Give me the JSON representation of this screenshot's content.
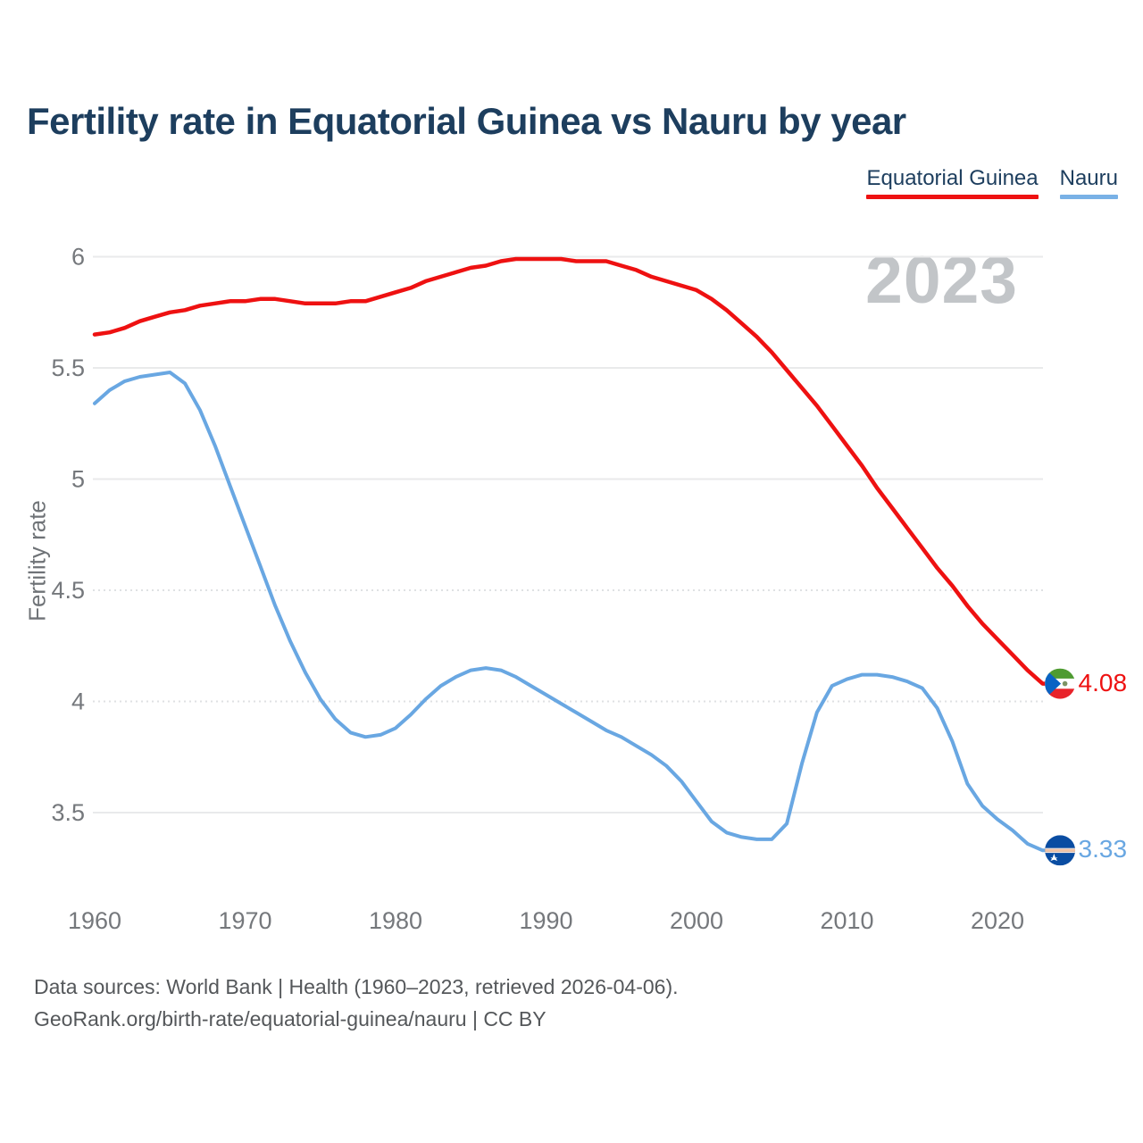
{
  "title": "Fertility rate in Equatorial Guinea vs Nauru by year",
  "legend": [
    {
      "label": "Equatorial Guinea",
      "color": "#ee1111"
    },
    {
      "label": "Nauru",
      "color": "#79b1e6"
    }
  ],
  "watermark": "2023",
  "footer": {
    "line1": "Data sources: World Bank | Health (1960–2023, retrieved 2026-04-06).",
    "line2": "GeoRank.org/birth-rate/equatorial-guinea/nauru | CC BY"
  },
  "chart_data": {
    "type": "line",
    "title": "Fertility rate in Equatorial Guinea vs Nauru by year",
    "xlabel": "",
    "ylabel": "Fertility rate",
    "xlim": [
      1960,
      2023
    ],
    "ylim": [
      3.5,
      6
    ],
    "grid": "horizontal",
    "legend_position": "top-right",
    "x_ticks": [
      1960,
      1970,
      1980,
      1990,
      2000,
      2010,
      2020
    ],
    "y_ticks": [
      6,
      5.5,
      5,
      4.5,
      4,
      3.5
    ],
    "y_tick_labels": [
      "6",
      "5.5",
      "5",
      "4.5",
      "4",
      "3.5"
    ],
    "dotted_gridlines": [
      4.5,
      4
    ],
    "x": [
      1960,
      1961,
      1962,
      1963,
      1964,
      1965,
      1966,
      1967,
      1968,
      1969,
      1970,
      1971,
      1972,
      1973,
      1974,
      1975,
      1976,
      1977,
      1978,
      1979,
      1980,
      1981,
      1982,
      1983,
      1984,
      1985,
      1986,
      1987,
      1988,
      1989,
      1990,
      1991,
      1992,
      1993,
      1994,
      1995,
      1996,
      1997,
      1998,
      1999,
      2000,
      2001,
      2002,
      2003,
      2004,
      2005,
      2006,
      2007,
      2008,
      2009,
      2010,
      2011,
      2012,
      2013,
      2014,
      2015,
      2016,
      2017,
      2018,
      2019,
      2020,
      2021,
      2022,
      2023
    ],
    "series": [
      {
        "name": "Equatorial Guinea",
        "color": "#ee1111",
        "end_label": "4.08",
        "flag": "equatorial-guinea",
        "values": [
          5.65,
          5.66,
          5.68,
          5.71,
          5.73,
          5.75,
          5.76,
          5.78,
          5.79,
          5.8,
          5.8,
          5.81,
          5.81,
          5.8,
          5.79,
          5.79,
          5.79,
          5.8,
          5.8,
          5.82,
          5.84,
          5.86,
          5.89,
          5.91,
          5.93,
          5.95,
          5.96,
          5.98,
          5.99,
          5.99,
          5.99,
          5.99,
          5.98,
          5.98,
          5.98,
          5.96,
          5.94,
          5.91,
          5.89,
          5.87,
          5.85,
          5.81,
          5.76,
          5.7,
          5.64,
          5.57,
          5.49,
          5.41,
          5.33,
          5.24,
          5.15,
          5.06,
          4.96,
          4.87,
          4.78,
          4.69,
          4.6,
          4.52,
          4.43,
          4.35,
          4.28,
          4.21,
          4.14,
          4.08
        ]
      },
      {
        "name": "Nauru",
        "color": "#69a7e2",
        "end_label": "3.33",
        "flag": "nauru",
        "values": [
          5.34,
          5.4,
          5.44,
          5.46,
          5.47,
          5.48,
          5.43,
          5.31,
          5.15,
          4.97,
          4.79,
          4.61,
          4.43,
          4.27,
          4.13,
          4.01,
          3.92,
          3.86,
          3.84,
          3.85,
          3.88,
          3.94,
          4.01,
          4.07,
          4.11,
          4.14,
          4.15,
          4.14,
          4.11,
          4.07,
          4.03,
          3.99,
          3.95,
          3.91,
          3.87,
          3.84,
          3.8,
          3.76,
          3.71,
          3.64,
          3.55,
          3.46,
          3.41,
          3.39,
          3.38,
          3.38,
          3.45,
          3.72,
          3.95,
          4.07,
          4.1,
          4.12,
          4.12,
          4.11,
          4.09,
          4.06,
          3.97,
          3.82,
          3.63,
          3.53,
          3.47,
          3.42,
          3.36,
          3.33
        ]
      }
    ]
  }
}
